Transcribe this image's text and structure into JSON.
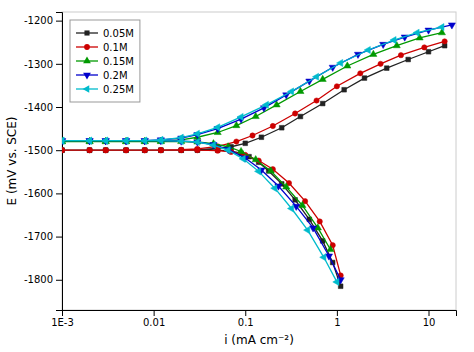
{
  "chart_data": {
    "type": "line",
    "xlabel": "i (mA cm⁻²)",
    "ylabel": "E (mV vs. SCE)",
    "log": "x",
    "grid": false,
    "legend": "upper left",
    "xlim": [
      0.001,
      19.952623149688797
    ],
    "xticks": [
      {
        "value": 0.001,
        "label": "1E-3"
      },
      0.01,
      0.1,
      1,
      10
    ],
    "ylim": [
      -1870,
      -1180
    ],
    "yticks": [
      -1800,
      -1700,
      -1600,
      -1500,
      -1400,
      -1300,
      -1200
    ],
    "series": [
      {
        "name": "0.05M",
        "color": "#222222",
        "marker": "square",
        "x": [
          0.001,
          0.002,
          0.003,
          0.005,
          0.008,
          0.012,
          0.02,
          0.03,
          0.05,
          0.07,
          0.09,
          0.11,
          0.14,
          0.18,
          0.25,
          0.35,
          0.5,
          0.7,
          0.9,
          1.1,
          null,
          0.001,
          0.002,
          0.003,
          0.005,
          0.008,
          0.012,
          0.02,
          0.03,
          0.05,
          0.07,
          0.1,
          0.15,
          0.25,
          0.4,
          0.7,
          1.2,
          2.0,
          3.5,
          6.0,
          10.0,
          15.0
        ],
        "values": [
          -1500,
          -1500,
          -1500,
          -1500,
          -1500,
          -1500,
          -1500,
          -1500,
          -1500,
          -1502,
          -1507,
          -1515,
          -1528,
          -1548,
          -1578,
          -1615,
          -1660,
          -1710,
          -1760,
          -1815,
          null,
          -1500,
          -1500,
          -1500,
          -1500,
          -1500,
          -1500,
          -1500,
          -1499,
          -1496,
          -1492,
          -1484,
          -1470,
          -1448,
          -1422,
          -1392,
          -1360,
          -1333,
          -1310,
          -1290,
          -1272,
          -1258
        ]
      },
      {
        "name": "0.1M",
        "color": "#cc0000",
        "marker": "circle",
        "x": [
          0.001,
          0.002,
          0.003,
          0.005,
          0.008,
          0.012,
          0.02,
          0.03,
          0.05,
          0.07,
          0.1,
          0.14,
          0.2,
          0.3,
          0.45,
          0.65,
          0.9,
          1.1,
          null,
          0.001,
          0.002,
          0.003,
          0.005,
          0.008,
          0.012,
          0.02,
          0.03,
          0.05,
          0.08,
          0.12,
          0.2,
          0.35,
          0.6,
          1.0,
          1.8,
          3.0,
          5.0,
          9.0,
          15.0
        ],
        "values": [
          -1500,
          -1500,
          -1500,
          -1500,
          -1500,
          -1500,
          -1500,
          -1500,
          -1501,
          -1504,
          -1511,
          -1524,
          -1544,
          -1576,
          -1618,
          -1665,
          -1720,
          -1790,
          null,
          -1500,
          -1500,
          -1500,
          -1500,
          -1500,
          -1500,
          -1499,
          -1497,
          -1491,
          -1480,
          -1466,
          -1444,
          -1415,
          -1385,
          -1352,
          -1322,
          -1300,
          -1280,
          -1262,
          -1248
        ]
      },
      {
        "name": "0.15M",
        "color": "#009900",
        "marker": "triangle-up",
        "x": [
          0.001,
          0.002,
          0.003,
          0.005,
          0.008,
          0.012,
          0.02,
          0.03,
          0.045,
          0.065,
          0.09,
          0.13,
          0.19,
          0.28,
          0.42,
          0.62,
          0.85,
          null,
          0.001,
          0.002,
          0.003,
          0.005,
          0.008,
          0.012,
          0.02,
          0.03,
          0.05,
          0.08,
          0.13,
          0.22,
          0.4,
          0.7,
          1.3,
          2.5,
          4.5,
          8.0,
          14.0
        ],
        "values": [
          -1480,
          -1480,
          -1480,
          -1480,
          -1480,
          -1480,
          -1480,
          -1481,
          -1485,
          -1492,
          -1503,
          -1522,
          -1548,
          -1585,
          -1628,
          -1680,
          -1730,
          null,
          -1480,
          -1480,
          -1480,
          -1480,
          -1480,
          -1479,
          -1476,
          -1470,
          -1459,
          -1443,
          -1422,
          -1395,
          -1364,
          -1336,
          -1305,
          -1278,
          -1258,
          -1240,
          -1228
        ]
      },
      {
        "name": "0.2M",
        "color": "#0000cc",
        "marker": "triangle-down",
        "x": [
          0.001,
          0.002,
          0.003,
          0.005,
          0.008,
          0.012,
          0.02,
          0.03,
          0.045,
          0.065,
          0.1,
          0.15,
          0.23,
          0.36,
          0.55,
          0.82,
          1.1,
          null,
          0.001,
          0.002,
          0.003,
          0.005,
          0.008,
          0.012,
          0.02,
          0.03,
          0.05,
          0.09,
          0.16,
          0.28,
          0.5,
          0.9,
          1.7,
          3.2,
          5.5,
          10.0,
          18.0
        ],
        "values": [
          -1478,
          -1478,
          -1478,
          -1478,
          -1478,
          -1478,
          -1479,
          -1481,
          -1487,
          -1498,
          -1518,
          -1546,
          -1583,
          -1630,
          -1680,
          -1745,
          -1800,
          null,
          -1478,
          -1478,
          -1478,
          -1478,
          -1478,
          -1476,
          -1472,
          -1464,
          -1450,
          -1428,
          -1402,
          -1372,
          -1340,
          -1308,
          -1278,
          -1255,
          -1238,
          -1222,
          -1210
        ]
      },
      {
        "name": "0.25M",
        "color": "#00bbcc",
        "marker": "triangle-left",
        "x": [
          0.001,
          0.002,
          0.003,
          0.005,
          0.008,
          0.012,
          0.02,
          0.03,
          0.045,
          0.065,
          0.095,
          0.14,
          0.21,
          0.32,
          0.48,
          0.72,
          1.0,
          null,
          0.001,
          0.002,
          0.003,
          0.005,
          0.008,
          0.012,
          0.02,
          0.03,
          0.05,
          0.09,
          0.17,
          0.32,
          0.6,
          1.1,
          2.2,
          4.2,
          7.5,
          14.0
        ],
        "values": [
          -1478,
          -1478,
          -1478,
          -1478,
          -1478,
          -1478,
          -1479,
          -1481,
          -1488,
          -1500,
          -1520,
          -1549,
          -1588,
          -1635,
          -1685,
          -1748,
          -1805,
          null,
          -1478,
          -1478,
          -1478,
          -1478,
          -1478,
          -1476,
          -1471,
          -1462,
          -1447,
          -1423,
          -1395,
          -1364,
          -1330,
          -1298,
          -1268,
          -1245,
          -1228,
          -1215
        ]
      }
    ]
  }
}
